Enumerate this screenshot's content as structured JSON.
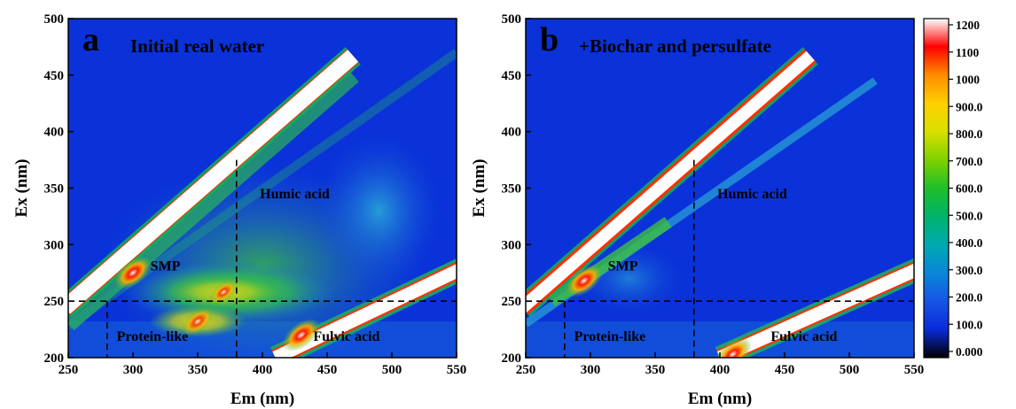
{
  "chart_data": [
    {
      "type": "heatmap",
      "panel_letter": "a",
      "title": "Initial real water",
      "xlabel": "Em (nm)",
      "ylabel": "Ex (nm)",
      "xlim": [
        250,
        550
      ],
      "ylim": [
        200,
        500
      ],
      "x_ticks": [
        "250",
        "300",
        "350",
        "400",
        "450",
        "500",
        "550"
      ],
      "y_ticks": [
        "200",
        "250",
        "300",
        "350",
        "400",
        "450",
        "500"
      ],
      "region_labels": [
        "Humic acid",
        "SMP",
        "Protein-like",
        "Fulvic acid"
      ],
      "region_boundaries": {
        "em_dashed": [
          280,
          380
        ],
        "ex_dashed": [
          250
        ]
      },
      "peaks": [
        {
          "em": 300,
          "ex": 275,
          "intensity": 1200
        },
        {
          "em": 350,
          "ex": 232,
          "intensity": 950
        },
        {
          "em": 370,
          "ex": 258,
          "intensity": 700
        },
        {
          "em": 430,
          "ex": 220,
          "intensity": 1200
        }
      ]
    },
    {
      "type": "heatmap",
      "panel_letter": "b",
      "title": "+Biochar and persulfate",
      "xlabel": "Em (nm)",
      "ylabel": "Ex (nm)",
      "xlim": [
        250,
        550
      ],
      "ylim": [
        200,
        500
      ],
      "x_ticks": [
        "250",
        "300",
        "350",
        "400",
        "450",
        "500",
        "550"
      ],
      "y_ticks": [
        "200",
        "250",
        "300",
        "350",
        "400",
        "450",
        "500"
      ],
      "region_labels": [
        "Humic acid",
        "SMP",
        "Protein-like",
        "Fulvic acid"
      ],
      "region_boundaries": {
        "em_dashed": [
          280,
          380
        ],
        "ex_dashed": [
          250
        ]
      },
      "peaks": [
        {
          "em": 295,
          "ex": 268,
          "intensity": 1200
        },
        {
          "em": 410,
          "ex": 203,
          "intensity": 1200
        }
      ]
    }
  ],
  "colorbar": {
    "labels": [
      "1200",
      "1100",
      "1000",
      "900.0",
      "800.0",
      "700.0",
      "600.0",
      "500.0",
      "400.0",
      "300.0",
      "200.0",
      "100.0",
      "0.000"
    ],
    "colors": [
      "#ffffff",
      "#ff0000",
      "#ff8c00",
      "#ffd000",
      "#d8e000",
      "#7fd000",
      "#1fbf2a",
      "#00b36b",
      "#00a9b0",
      "#0a86d8",
      "#1655e6",
      "#0a2ad8",
      "#000000"
    ]
  }
}
